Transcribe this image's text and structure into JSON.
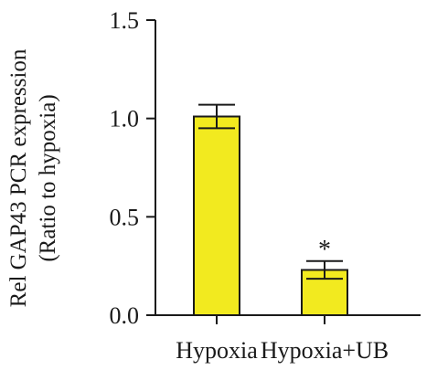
{
  "chart_data": {
    "type": "bar",
    "categories": [
      "Hypoxia",
      "Hypoxia+UB"
    ],
    "values": [
      1.01,
      0.23
    ],
    "errors": [
      0.06,
      0.045
    ],
    "ylabel": "Rel GAP43 PCR expression",
    "ylabel_sub": "(Ratio to hypoxia)",
    "ylim": [
      0,
      1.5
    ],
    "yticks": [
      0.0,
      0.5,
      1.0,
      1.5
    ],
    "ytick_labels": [
      "0.0",
      "0.5",
      "1.0",
      "1.5"
    ],
    "annotations": [
      {
        "category_index": 1,
        "text": "*"
      }
    ],
    "bar_color": "#f2ea1f",
    "grid": false,
    "legend": "none"
  }
}
